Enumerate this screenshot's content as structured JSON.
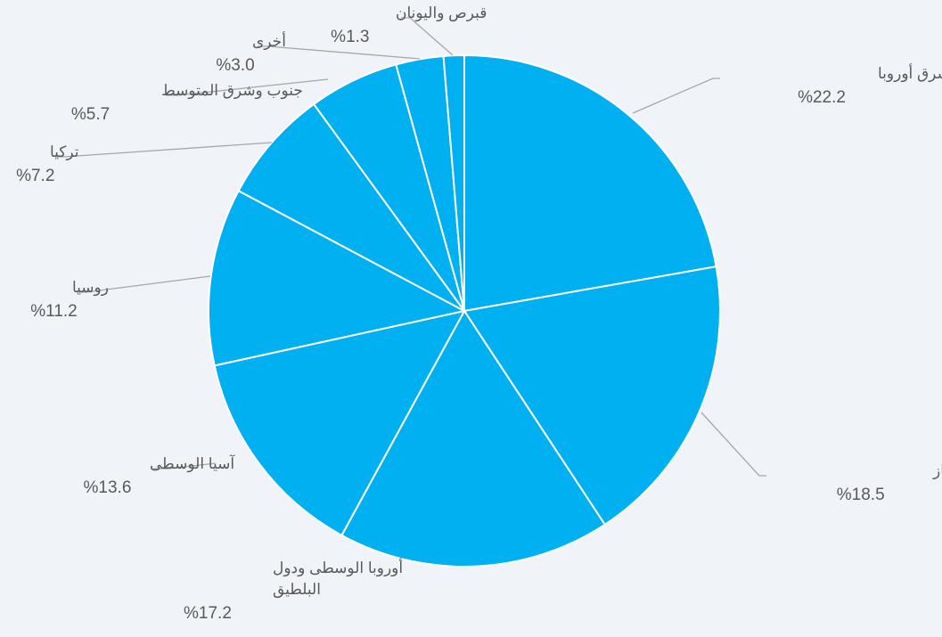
{
  "chart_data": {
    "type": "pie",
    "title": "",
    "slice_color": "#00b0f0",
    "separator_color": "#ffffff",
    "leader_color": "#a6a6a6",
    "slices": [
      {
        "label": "جنوب شرق أوروبا",
        "value": 22.2,
        "display": "%22.2"
      },
      {
        "label": "أوروبا الشرقية والقوقاز",
        "value": 18.5,
        "display": "%18.5"
      },
      {
        "label": "أوروبا الوسطى ودول البلطيق",
        "label_lines": [
          "أوروبا الوسطى ودول",
          "البلطيق"
        ],
        "value": 17.2,
        "display": "%17.2"
      },
      {
        "label": "آسيا الوسطى",
        "value": 13.6,
        "display": "%13.6"
      },
      {
        "label": "روسيا",
        "value": 11.2,
        "display": "%11.2"
      },
      {
        "label": "تركيا",
        "value": 7.2,
        "display": "%7.2"
      },
      {
        "label": "جنوب وشرق المتوسط",
        "value": 5.7,
        "display": "%5.7"
      },
      {
        "label": "أخرى",
        "value": 3.0,
        "display": "%3.0"
      },
      {
        "label": "قبرص واليونان",
        "value": 1.3,
        "display": "%1.3"
      }
    ]
  }
}
